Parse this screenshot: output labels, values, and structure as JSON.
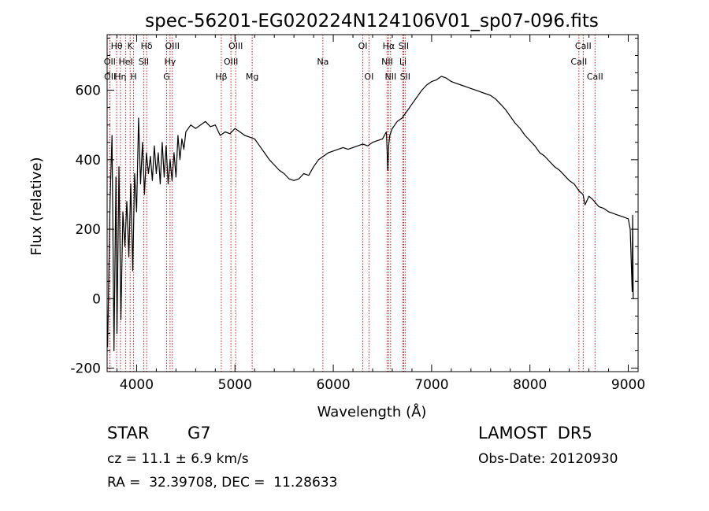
{
  "chart_data": {
    "type": "line",
    "title": "spec-56201-EG020224N124106V01_sp07-096.fits",
    "xlabel": "Wavelength (Å)",
    "ylabel": "Flux (relative)",
    "xlim": [
      3700,
      9100
    ],
    "ylim": [
      -210,
      760
    ],
    "xticks": [
      4000,
      5000,
      6000,
      7000,
      8000,
      9000
    ],
    "yticks": [
      -200,
      0,
      200,
      400,
      600
    ],
    "grid": false,
    "series": [
      {
        "x": [
          3705,
          3730,
          3750,
          3770,
          3790,
          3800,
          3820,
          3840,
          3860,
          3880,
          3900,
          3920,
          3940,
          3960,
          3980,
          4000,
          4020,
          4040,
          4060,
          4080,
          4100,
          4120,
          4140,
          4160,
          4180,
          4200,
          4220,
          4240,
          4260,
          4280,
          4300,
          4320,
          4340,
          4360,
          4380,
          4400,
          4420,
          4440,
          4460,
          4480,
          4500,
          4550,
          4600,
          4650,
          4700,
          4750,
          4800,
          4850,
          4900,
          4950,
          5000,
          5050,
          5100,
          5150,
          5200,
          5250,
          5300,
          5350,
          5400,
          5450,
          5500,
          5550,
          5600,
          5650,
          5700,
          5750,
          5800,
          5850,
          5900,
          5950,
          6000,
          6050,
          6100,
          6150,
          6200,
          6250,
          6300,
          6350,
          6400,
          6450,
          6500,
          6540,
          6555,
          6563,
          6575,
          6600,
          6650,
          6700,
          6750,
          6800,
          6850,
          6900,
          6950,
          7000,
          7050,
          7100,
          7150,
          7200,
          7250,
          7300,
          7350,
          7400,
          7450,
          7500,
          7550,
          7600,
          7650,
          7700,
          7750,
          7800,
          7850,
          7900,
          7950,
          8000,
          8050,
          8100,
          8150,
          8200,
          8250,
          8300,
          8350,
          8400,
          8450,
          8500,
          8540,
          8560,
          8600,
          8640,
          8670,
          8700,
          8750,
          8800,
          8850,
          8900,
          8950,
          9000,
          9020,
          9040,
          9045,
          9050
        ],
        "y": [
          -140,
          280,
          470,
          -150,
          350,
          -100,
          380,
          -60,
          250,
          150,
          280,
          120,
          330,
          80,
          360,
          250,
          520,
          330,
          450,
          300,
          420,
          360,
          410,
          340,
          440,
          360,
          420,
          330,
          450,
          350,
          440,
          330,
          400,
          340,
          420,
          350,
          470,
          400,
          460,
          430,
          480,
          500,
          490,
          500,
          510,
          495,
          500,
          470,
          480,
          475,
          490,
          480,
          470,
          465,
          460,
          440,
          420,
          400,
          385,
          370,
          360,
          345,
          340,
          345,
          360,
          355,
          380,
          400,
          410,
          420,
          425,
          430,
          435,
          430,
          435,
          440,
          445,
          440,
          450,
          455,
          460,
          480,
          370,
          440,
          470,
          490,
          510,
          520,
          540,
          560,
          580,
          600,
          615,
          625,
          630,
          640,
          635,
          625,
          620,
          615,
          610,
          605,
          600,
          595,
          590,
          585,
          575,
          560,
          545,
          525,
          505,
          490,
          470,
          455,
          440,
          420,
          410,
          395,
          380,
          370,
          355,
          340,
          330,
          310,
          300,
          270,
          295,
          285,
          275,
          265,
          260,
          250,
          245,
          240,
          235,
          230,
          200,
          20,
          240,
          0
        ]
      }
    ],
    "lines": [
      {
        "label": "Hθ",
        "wave": 3797,
        "row": 1
      },
      {
        "label": "OII",
        "wave": 3727,
        "row": 2
      },
      {
        "label": "OII",
        "wave": 3729,
        "row": 3
      },
      {
        "label": "Hη",
        "wave": 3835,
        "row": 3
      },
      {
        "label": "K",
        "wave": 3934,
        "row": 1
      },
      {
        "label": "HeI",
        "wave": 3889,
        "row": 2
      },
      {
        "label": "H",
        "wave": 3969,
        "row": 3
      },
      {
        "label": "Hδ",
        "wave": 4102,
        "row": 1
      },
      {
        "label": "SII",
        "wave": 4072,
        "row": 2
      },
      {
        "label": "OIII",
        "wave": 4363,
        "row": 1
      },
      {
        "label": "Hγ",
        "wave": 4340,
        "row": 2
      },
      {
        "label": "G",
        "wave": 4305,
        "row": 3
      },
      {
        "label": "Hβ",
        "wave": 4861,
        "row": 3
      },
      {
        "label": "OIII",
        "wave": 4959,
        "row": 2
      },
      {
        "label": "OIII",
        "wave": 5007,
        "row": 1
      },
      {
        "label": "Mg",
        "wave": 5175,
        "row": 3
      },
      {
        "label": "Na",
        "wave": 5894,
        "row": 2
      },
      {
        "label": "OI",
        "wave": 6300,
        "row": 1
      },
      {
        "label": "OI",
        "wave": 6363,
        "row": 3
      },
      {
        "label": "Hα",
        "wave": 6563,
        "row": 1
      },
      {
        "label": "NII",
        "wave": 6548,
        "row": 2
      },
      {
        "label": "NII",
        "wave": 6583,
        "row": 3
      },
      {
        "label": "SII",
        "wave": 6716,
        "row": 1
      },
      {
        "label": "Li",
        "wave": 6708,
        "row": 2
      },
      {
        "label": "SII",
        "wave": 6731,
        "row": 3
      },
      {
        "label": "CaII",
        "wave": 8542,
        "row": 1
      },
      {
        "label": "CaII",
        "wave": 8498,
        "row": 2
      },
      {
        "label": "CaII",
        "wave": 8662,
        "row": 3
      }
    ]
  },
  "footer": {
    "object_class": "STAR",
    "subclass": "G7",
    "redshift": "cz = 11.1 ± 6.9 km/s",
    "coords": "RA =  32.39708, DEC =  11.28633",
    "survey": "LAMOST  DR5",
    "obs_date": "Obs-Date: 20120930"
  }
}
